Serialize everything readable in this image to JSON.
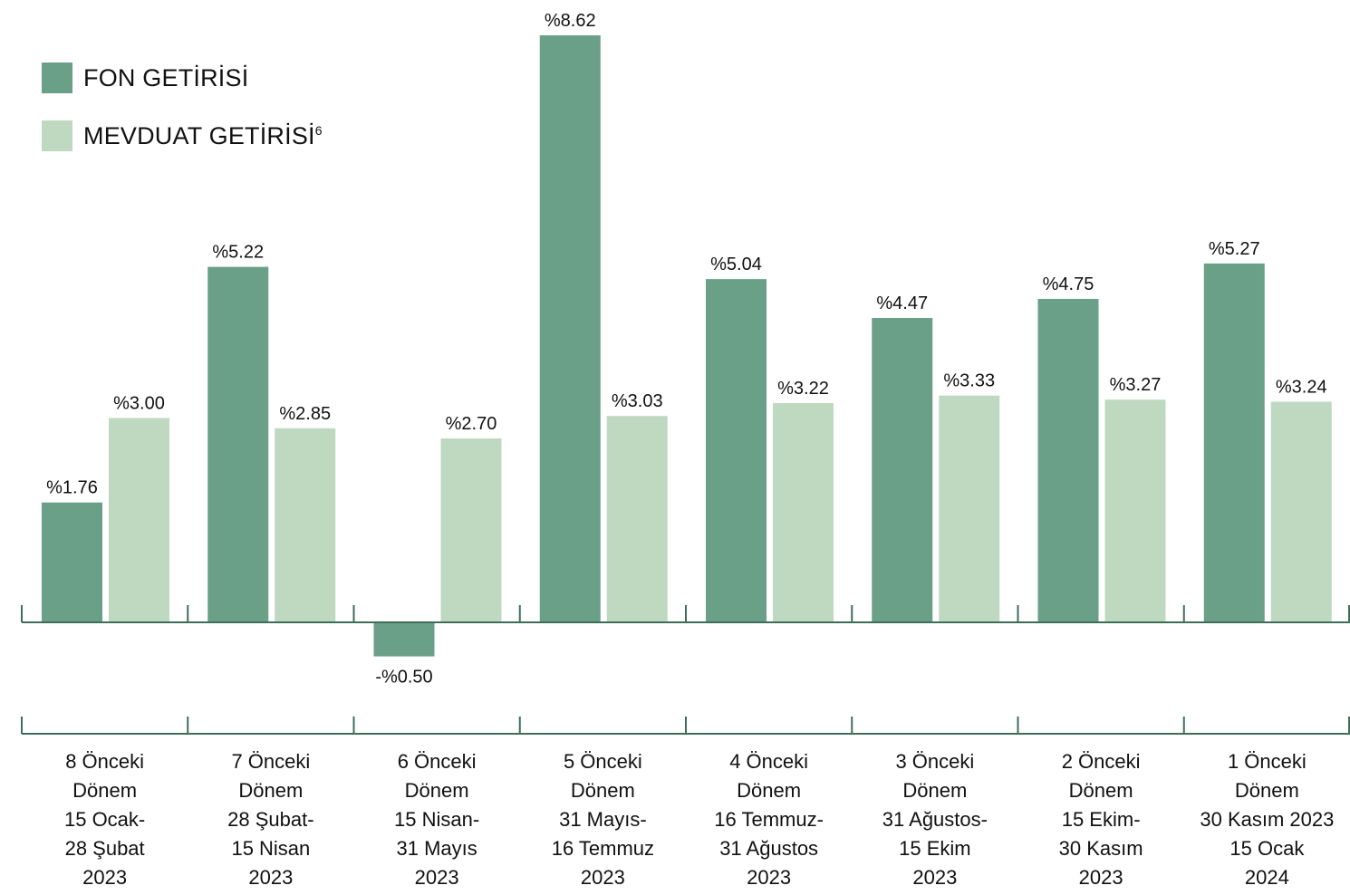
{
  "legend": {
    "fund": {
      "label": "FON GETİRİSİ",
      "color": "#6a9f88"
    },
    "deposit": {
      "label": "MEVDUAT GETİRİSİ",
      "sup": "6",
      "color": "#bed9bf"
    }
  },
  "chart_data": {
    "type": "bar",
    "categories": [
      [
        "8 Önceki",
        "Dönem",
        "15 Ocak-",
        "28 Şubat",
        "2023"
      ],
      [
        "7 Önceki",
        "Dönem",
        "28 Şubat-",
        "15 Nisan",
        "2023"
      ],
      [
        "6 Önceki",
        "Dönem",
        "15 Nisan-",
        "31 Mayıs",
        "2023"
      ],
      [
        "5 Önceki",
        "Dönem",
        "31 Mayıs-",
        "16 Temmuz",
        "2023"
      ],
      [
        "4 Önceki",
        "Dönem",
        "16 Temmuz-",
        "31 Ağustos",
        "2023"
      ],
      [
        "3 Önceki",
        "Dönem",
        "31 Ağustos-",
        "15 Ekim",
        "2023"
      ],
      [
        "2 Önceki",
        "Dönem",
        "15 Ekim-",
        "30 Kasım",
        "2023"
      ],
      [
        "1 Önceki",
        "Dönem",
        "30 Kasım 2023",
        "15 Ocak",
        "2024"
      ]
    ],
    "series": [
      {
        "name": "FON GETİRİSİ",
        "values": [
          1.76,
          5.22,
          -0.5,
          8.62,
          5.04,
          4.47,
          4.75,
          5.27
        ],
        "labels": [
          "%1.76",
          "%5.22",
          "-%0.50",
          "%8.62",
          "%5.04",
          "%4.47",
          "%4.75",
          "%5.27"
        ]
      },
      {
        "name": "MEVDUAT GETİRİSİ",
        "values": [
          3.0,
          2.85,
          2.7,
          3.03,
          3.22,
          3.33,
          3.27,
          3.24
        ],
        "labels": [
          "%3.00",
          "%2.85",
          "%2.70",
          "%3.03",
          "%3.22",
          "%3.33",
          "%3.27",
          "%3.24"
        ]
      }
    ],
    "axis_color": "#3e6e5a"
  }
}
